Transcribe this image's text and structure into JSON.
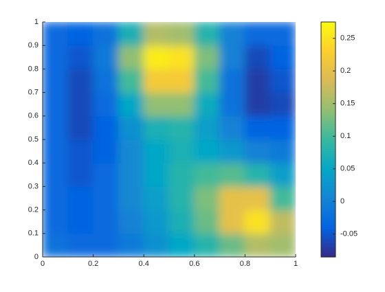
{
  "chart_data": {
    "type": "heatmap",
    "colormap": "parula",
    "x": [
      0.05,
      0.15,
      0.25,
      0.35,
      0.45,
      0.55,
      0.65,
      0.75,
      0.85,
      0.95
    ],
    "y": [
      0.05,
      0.15,
      0.25,
      0.35,
      0.45,
      0.55,
      0.65,
      0.75,
      0.85,
      0.95
    ],
    "z": [
      [
        -0.02,
        -0.03,
        -0.03,
        -0.01,
        0.02,
        0.05,
        0.08,
        0.12,
        0.16,
        0.15
      ],
      [
        -0.03,
        -0.04,
        -0.03,
        0.0,
        0.03,
        0.07,
        0.12,
        0.2,
        0.25,
        0.17
      ],
      [
        -0.03,
        -0.04,
        -0.03,
        0.01,
        0.04,
        0.08,
        0.13,
        0.2,
        0.2,
        0.1
      ],
      [
        -0.03,
        -0.05,
        -0.03,
        0.01,
        0.05,
        0.08,
        0.1,
        0.11,
        0.08,
        0.04
      ],
      [
        -0.03,
        -0.05,
        -0.04,
        0.01,
        0.05,
        0.07,
        0.05,
        0.03,
        0.0,
        -0.01
      ],
      [
        -0.03,
        -0.06,
        -0.04,
        0.02,
        0.07,
        0.08,
        0.04,
        0.0,
        -0.04,
        -0.04
      ],
      [
        -0.03,
        -0.06,
        -0.03,
        0.05,
        0.14,
        0.14,
        0.06,
        -0.02,
        -0.07,
        -0.06
      ],
      [
        -0.03,
        -0.06,
        -0.02,
        0.1,
        0.22,
        0.22,
        0.1,
        -0.02,
        -0.07,
        -0.05
      ],
      [
        -0.03,
        -0.05,
        -0.01,
        0.14,
        0.26,
        0.25,
        0.13,
        0.0,
        -0.06,
        -0.04
      ],
      [
        -0.03,
        -0.04,
        -0.02,
        0.07,
        0.16,
        0.15,
        0.08,
        0.0,
        -0.03,
        -0.03
      ]
    ],
    "xlim": [
      0,
      1
    ],
    "ylim": [
      0,
      1
    ],
    "xticks": [
      0,
      0.2,
      0.4,
      0.6,
      0.8,
      1
    ],
    "yticks": [
      0,
      0.1,
      0.2,
      0.3,
      0.4,
      0.5,
      0.6,
      0.7,
      0.8,
      0.9,
      1
    ],
    "clim": [
      -0.085,
      0.275
    ],
    "cticks": [
      -0.05,
      0,
      0.05,
      0.1,
      0.15,
      0.2,
      0.25
    ]
  }
}
